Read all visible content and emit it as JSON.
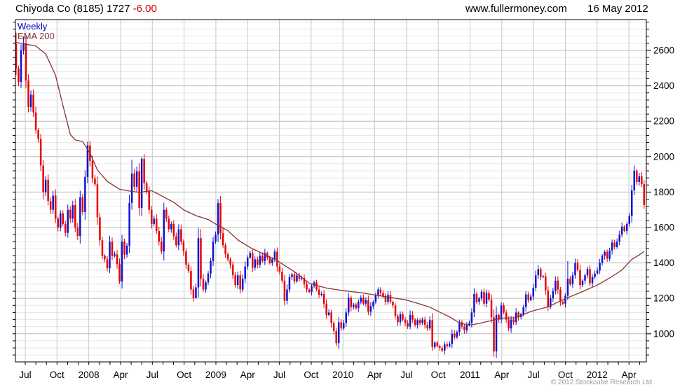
{
  "header": {
    "title": "Chiyoda Co (8185) 1727",
    "change": "-6.00",
    "website": "www.fullermoney.com",
    "date": "16 May 2012"
  },
  "legend": {
    "series1": "Weekly",
    "series2": "EMA 200"
  },
  "footer": {
    "copyright": "© 2012 Stockcube Research Ltd"
  },
  "colors": {
    "up_candle": "#1212cf",
    "down_candle": "#e60000",
    "ema_line": "#8b3232",
    "grid_major": "#bcbcbc",
    "grid_minor": "#e7e7e7",
    "grid_vertical": "#c9c9c9",
    "axis": "#000000",
    "change_text": "#cc0000",
    "weekly_label": "#0000cc",
    "copyright_text": "#9a9a9a"
  },
  "chart_data": {
    "type": "candlestick",
    "title": "Chiyoda Co (8185) weekly candles with 200-week EMA",
    "series": [
      {
        "name": "Weekly",
        "style": "candlestick"
      },
      {
        "name": "EMA 200",
        "style": "line"
      }
    ],
    "x_tick_labels": [
      "Jul",
      "Oct",
      "2008",
      "Apr",
      "Jul",
      "Oct",
      "2009",
      "Apr",
      "Jul",
      "Oct",
      "2010",
      "Apr",
      "Jul",
      "Oct",
      "2011",
      "Apr",
      "Jul",
      "Oct",
      "2012",
      "Apr"
    ],
    "y_ticks": [
      1000,
      1200,
      1400,
      1600,
      1800,
      2000,
      2200,
      2400,
      2600
    ],
    "y_minor_step": 40,
    "ylim": [
      841,
      2774
    ],
    "grid": true,
    "legend_position": "top-left-inside",
    "current_price": 1727,
    "change": -6.0,
    "first_open": 2636,
    "weekly_closes": [
      2497,
      2422,
      2600,
      2640,
      2430,
      2280,
      2350,
      2250,
      2150,
      2100,
      1950,
      1800,
      1870,
      1750,
      1700,
      1780,
      1650,
      1600,
      1680,
      1620,
      1570,
      1700,
      1650,
      1726,
      1600,
      1552,
      1770,
      1687,
      1885,
      2063,
      1976,
      1877,
      1844,
      1658,
      1528,
      1440,
      1421,
      1370,
      1520,
      1440,
      1449,
      1393,
      1295,
      1520,
      1447,
      1497,
      1739,
      1905,
      1830,
      1917,
      1711,
      1988,
      1850,
      1806,
      1700,
      1620,
      1650,
      1580,
      1520,
      1465,
      1700,
      1650,
      1590,
      1620,
      1550,
      1500,
      1590,
      1520,
      1465,
      1390,
      1355,
      1250,
      1200,
      1262,
      1540,
      1310,
      1250,
      1290,
      1340,
      1410,
      1520,
      1560,
      1738,
      1568,
      1500,
      1450,
      1420,
      1390,
      1330,
      1276,
      1330,
      1250,
      1310,
      1380,
      1430,
      1456,
      1373,
      1420,
      1390,
      1440,
      1410,
      1456,
      1430,
      1400,
      1421,
      1464,
      1380,
      1350,
      1300,
      1186,
      1250,
      1320,
      1335,
      1296,
      1330,
      1310,
      1315,
      1280,
      1250,
      1236,
      1270,
      1290,
      1250,
      1220,
      1225,
      1170,
      1106,
      1120,
      1060,
      1015,
      947,
      1065,
      1030,
      1060,
      1120,
      1203,
      1150,
      1165,
      1144,
      1180,
      1203,
      1170,
      1190,
      1124,
      1156,
      1180,
      1220,
      1250,
      1230,
      1210,
      1180,
      1220,
      1180,
      1160,
      1100,
      1065,
      1110,
      1080,
      1060,
      1040,
      1106,
      1080,
      1050,
      1077,
      1060,
      1080,
      1050,
      1030,
      1077,
      925,
      950,
      930,
      920,
      905,
      940,
      930,
      942,
      1000,
      980,
      1010,
      1065,
      1040,
      1020,
      1050,
      1060,
      1120,
      1225,
      1180,
      1200,
      1237,
      1170,
      1230,
      1193,
      1093,
      900,
      1106,
      1080,
      1160,
      1120,
      1080,
      1030,
      1080,
      1065,
      1120,
      1094,
      1110,
      1150,
      1222,
      1190,
      1210,
      1260,
      1330,
      1365,
      1320,
      1324,
      1245,
      1152,
      1200,
      1240,
      1300,
      1250,
      1180,
      1170,
      1215,
      1310,
      1280,
      1330,
      1400,
      1360,
      1275,
      1300,
      1330,
      1365,
      1285,
      1320,
      1340,
      1357,
      1400,
      1440,
      1463,
      1424,
      1470,
      1515,
      1490,
      1520,
      1560,
      1605,
      1580,
      1620,
      1665,
      1810,
      1921,
      1857,
      1889,
      1845,
      1727
    ],
    "extremes": [
      {
        "i": 0,
        "high": 2700,
        "low": 2460
      },
      {
        "i": 3,
        "high": 2680
      },
      {
        "i": 5,
        "low": 2250
      },
      {
        "i": 29,
        "high": 2085
      },
      {
        "i": 42,
        "low": 1280
      },
      {
        "i": 47,
        "high": 1983
      },
      {
        "i": 51,
        "high": 1996
      },
      {
        "i": 73,
        "low": 1225
      },
      {
        "i": 82,
        "high": 1760
      },
      {
        "i": 109,
        "low": 1160
      },
      {
        "i": 130,
        "low": 930
      },
      {
        "i": 169,
        "low": 905
      },
      {
        "i": 194,
        "low": 870
      },
      {
        "i": 224,
        "high": 1410
      },
      {
        "i": 252,
        "high": 1930
      }
    ],
    "ema_anchors": [
      [
        0,
        2645
      ],
      [
        8,
        2625
      ],
      [
        12,
        2580
      ],
      [
        16,
        2460
      ],
      [
        19,
        2290
      ],
      [
        22,
        2125
      ],
      [
        24,
        2095
      ],
      [
        27,
        2085
      ],
      [
        30,
        2020
      ],
      [
        33,
        1925
      ],
      [
        37,
        1860
      ],
      [
        42,
        1816
      ],
      [
        46,
        1806
      ],
      [
        50,
        1798
      ],
      [
        55,
        1808
      ],
      [
        60,
        1772
      ],
      [
        64,
        1742
      ],
      [
        68,
        1700
      ],
      [
        73,
        1667
      ],
      [
        78,
        1645
      ],
      [
        81,
        1620
      ],
      [
        86,
        1582
      ],
      [
        90,
        1530
      ],
      [
        95,
        1487
      ],
      [
        99,
        1460
      ],
      [
        106,
        1413
      ],
      [
        113,
        1350
      ],
      [
        119,
        1285
      ],
      [
        126,
        1258
      ],
      [
        133,
        1243
      ],
      [
        140,
        1232
      ],
      [
        146,
        1218
      ],
      [
        152,
        1205
      ],
      [
        158,
        1192
      ],
      [
        163,
        1172
      ],
      [
        168,
        1150
      ],
      [
        172,
        1122
      ],
      [
        176,
        1095
      ],
      [
        180,
        1062
      ],
      [
        184,
        1048
      ],
      [
        188,
        1058
      ],
      [
        193,
        1075
      ],
      [
        197,
        1088
      ],
      [
        203,
        1090
      ],
      [
        209,
        1126
      ],
      [
        216,
        1152
      ],
      [
        223,
        1198
      ],
      [
        230,
        1238
      ],
      [
        236,
        1275
      ],
      [
        241,
        1315
      ],
      [
        246,
        1360
      ],
      [
        250,
        1420
      ],
      [
        253,
        1445
      ],
      [
        255,
        1465
      ]
    ]
  }
}
